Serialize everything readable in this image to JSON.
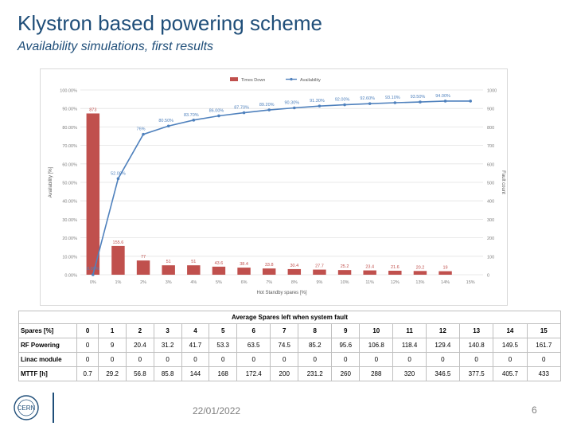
{
  "slide": {
    "title": "Klystron based powering scheme",
    "subtitle": "Availability simulations, first results",
    "date": "22/01/2022",
    "page": "6",
    "logo_text": "CERN"
  },
  "colors": {
    "bars": "#c0504d",
    "line": "#4f81bd",
    "title": "#1f4e79"
  },
  "chart_data": {
    "type": "bar",
    "categories": [
      "0%",
      "1%",
      "2%",
      "3%",
      "4%",
      "5%",
      "6%",
      "7%",
      "8%",
      "9%",
      "10%",
      "11%",
      "12%",
      "13%",
      "14%",
      "15%"
    ],
    "xlabel": "Hot Standby spares [%]",
    "ylabel": "Availability [%]",
    "y2label": "Fault count",
    "ylim": [
      0,
      100
    ],
    "y2lim": [
      0,
      1000
    ],
    "yticks": [
      "0.00%",
      "10.00%",
      "20.00%",
      "30.00%",
      "40.00%",
      "50.00%",
      "60.00%",
      "70.00%",
      "80.00%",
      "90.00%",
      "100.00%"
    ],
    "y2ticks": [
      "0",
      "100",
      "200",
      "300",
      "400",
      "500",
      "600",
      "700",
      "800",
      "900",
      "1000"
    ],
    "legend_position": "top",
    "grid": true,
    "series": [
      {
        "name": "Times Down",
        "type": "bar",
        "axis": "right",
        "values": [
          873,
          155.6,
          77,
          51,
          51,
          43.6,
          38.4,
          33.8,
          30.4,
          27.7,
          25.2,
          23.4,
          21.6,
          20.2,
          19,
          0
        ],
        "labels": [
          "873",
          "155.6",
          "77",
          "51",
          "51",
          "43.6",
          "38.4",
          "33.8",
          "30.4",
          "27.7",
          "25.2",
          "23.4",
          "21.6",
          "20.2",
          "19",
          ""
        ]
      },
      {
        "name": "Availability",
        "type": "line",
        "axis": "left",
        "values": [
          0,
          52,
          76,
          80.5,
          83.7,
          86,
          87.7,
          89.2,
          90.3,
          91.3,
          92,
          92.6,
          93.1,
          93.5,
          94,
          94
        ],
        "labels": [
          "0.00%",
          "52.00%",
          "76%",
          "80.50%",
          "83.70%",
          "86.00%",
          "87.70%",
          "89.20%",
          "90.30%",
          "91.30%",
          "92.00%",
          "92.60%",
          "93.10%",
          "93.50%",
          "94.00%",
          ""
        ]
      }
    ]
  },
  "table": {
    "caption": "Average Spares left when system fault",
    "rows": [
      {
        "label": "Spares [%]",
        "values": [
          "0",
          "1",
          "2",
          "3",
          "4",
          "5",
          "6",
          "7",
          "8",
          "9",
          "10",
          "11",
          "12",
          "13",
          "14",
          "15"
        ]
      },
      {
        "label": "RF Powering",
        "values": [
          "0",
          "9",
          "20.4",
          "31.2",
          "41.7",
          "53.3",
          "63.5",
          "74.5",
          "85.2",
          "95.6",
          "106.8",
          "118.4",
          "129.4",
          "140.8",
          "149.5",
          "161.7"
        ]
      },
      {
        "label": "Linac module",
        "values": [
          "0",
          "0",
          "0",
          "0",
          "0",
          "0",
          "0",
          "0",
          "0",
          "0",
          "0",
          "0",
          "0",
          "0",
          "0",
          "0"
        ]
      },
      {
        "label": "MTTF [h]",
        "values": [
          "0.7",
          "29.2",
          "56.8",
          "85.8",
          "144",
          "168",
          "172.4",
          "200",
          "231.2",
          "260",
          "288",
          "320",
          "346.5",
          "377.5",
          "405.7",
          "433"
        ]
      }
    ]
  }
}
